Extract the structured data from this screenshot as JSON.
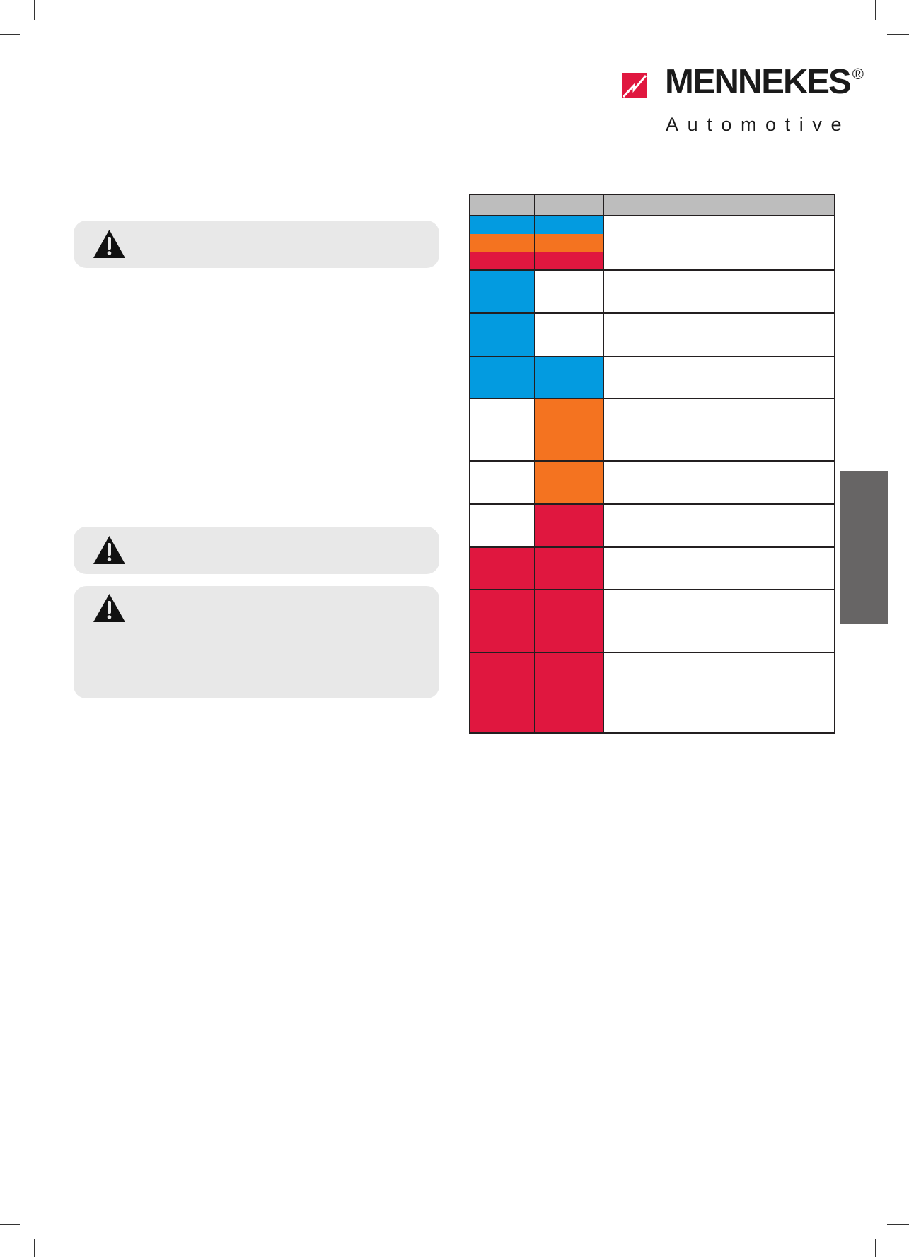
{
  "logo": {
    "brand": "MENNEKES",
    "registered": "®",
    "subtitle": "Automotive",
    "brand_color": "#e0173f"
  },
  "colors": {
    "blue": "#039be0",
    "orange": "#f47320",
    "red": "#e0173f",
    "white": "#ffffff",
    "header": "#bdbdbd",
    "warning_box": "#e8e8e8",
    "side_tab": "#676565"
  },
  "warnings": [
    {
      "icon": "warning-triangle-icon"
    },
    {
      "icon": "warning-triangle-icon"
    },
    {
      "icon": "warning-triangle-icon"
    }
  ],
  "led_table": {
    "rows": [
      {
        "col1": [
          "blue",
          "orange",
          "red"
        ],
        "col2": [
          "blue",
          "orange",
          "red"
        ]
      },
      {
        "col1": [
          "blue"
        ],
        "col2": [
          "white"
        ]
      },
      {
        "col1": [
          "blue"
        ],
        "col2": [
          "white"
        ]
      },
      {
        "col1": [
          "blue"
        ],
        "col2": [
          "blue"
        ]
      },
      {
        "col1": [
          "white"
        ],
        "col2": [
          "orange"
        ]
      },
      {
        "col1": [
          "white"
        ],
        "col2": [
          "orange"
        ]
      },
      {
        "col1": [
          "white"
        ],
        "col2": [
          "red"
        ]
      },
      {
        "col1": [
          "red"
        ],
        "col2": [
          "red"
        ]
      },
      {
        "col1": [
          "red"
        ],
        "col2": [
          "red"
        ]
      },
      {
        "col1": [
          "red"
        ],
        "col2": [
          "red"
        ]
      }
    ]
  }
}
